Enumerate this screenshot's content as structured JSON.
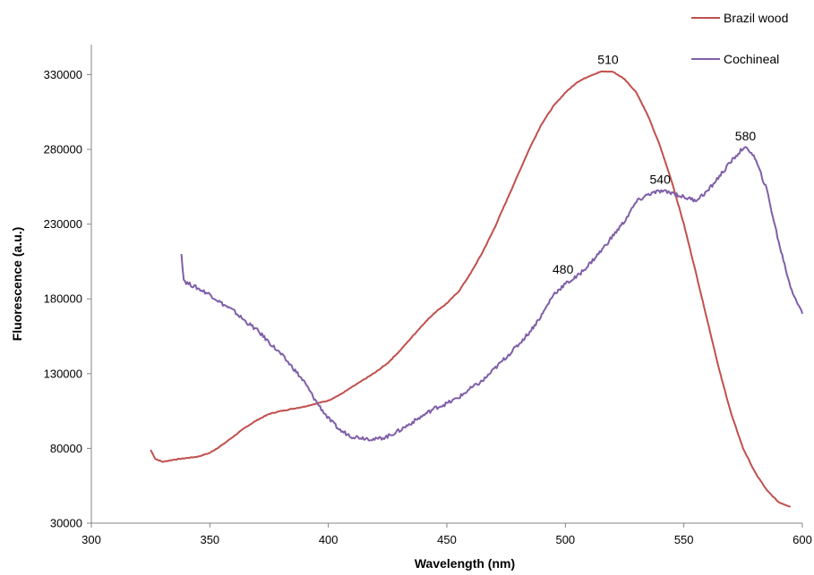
{
  "chart_data": {
    "type": "line",
    "title": "",
    "xlabel": "Wavelength (nm)",
    "ylabel": "Fluorescence (a.u.)",
    "xlim": [
      300,
      600
    ],
    "ylim": [
      30000,
      350000
    ],
    "xticks": [
      300,
      350,
      400,
      450,
      500,
      550,
      600
    ],
    "yticks": [
      30000,
      80000,
      130000,
      180000,
      230000,
      280000,
      330000
    ],
    "xtick_labels": [
      "300",
      "350",
      "400",
      "450",
      "500",
      "550",
      "600"
    ],
    "ytick_labels": [
      "30000",
      "80000",
      "130000",
      "180000",
      "230000",
      "280000",
      "330000"
    ],
    "grid": false,
    "legend_position": "top-right",
    "series": [
      {
        "name": "Brazil wood",
        "color": "#c0504d",
        "x": [
          325,
          327,
          330,
          335,
          340,
          345,
          350,
          355,
          360,
          365,
          370,
          375,
          380,
          385,
          390,
          395,
          400,
          405,
          410,
          415,
          420,
          425,
          430,
          435,
          440,
          445,
          450,
          455,
          460,
          465,
          470,
          475,
          480,
          485,
          490,
          495,
          500,
          505,
          510,
          515,
          520,
          525,
          530,
          535,
          540,
          545,
          550,
          555,
          560,
          565,
          570,
          575,
          580,
          585,
          590,
          595
        ],
        "y": [
          79000,
          73000,
          71000,
          72500,
          73500,
          74500,
          77000,
          82000,
          88000,
          94000,
          99000,
          103000,
          105000,
          106500,
          108000,
          110000,
          112000,
          116000,
          121000,
          126000,
          131000,
          137000,
          145000,
          154000,
          163000,
          171000,
          177000,
          185000,
          197000,
          211000,
          227000,
          245000,
          263000,
          281000,
          297000,
          309000,
          318000,
          325000,
          329000,
          332000,
          332000,
          327000,
          318000,
          302000,
          282000,
          258000,
          230000,
          198000,
          165000,
          132000,
          103000,
          80000,
          64000,
          52000,
          44000,
          41000
        ]
      },
      {
        "name": "Cochineal",
        "color": "#7f5fa8",
        "x": [
          338,
          339,
          340,
          345,
          350,
          355,
          360,
          365,
          370,
          375,
          380,
          385,
          390,
          395,
          400,
          405,
          410,
          415,
          420,
          425,
          430,
          435,
          440,
          445,
          450,
          455,
          460,
          465,
          470,
          475,
          480,
          485,
          490,
          495,
          500,
          505,
          510,
          515,
          520,
          525,
          530,
          535,
          540,
          545,
          550,
          555,
          560,
          565,
          570,
          575,
          578,
          580,
          585,
          590,
          595,
          600
        ],
        "y": [
          210000,
          193000,
          191000,
          187000,
          183000,
          177000,
          172000,
          165000,
          159000,
          151000,
          143000,
          134000,
          124000,
          111000,
          100000,
          92000,
          88000,
          87000,
          86000,
          88000,
          92000,
          97000,
          102000,
          107000,
          110000,
          114000,
          120000,
          125000,
          133000,
          141000,
          149000,
          158000,
          169000,
          183000,
          190000,
          195000,
          203000,
          212000,
          222000,
          232000,
          245000,
          250000,
          252000,
          251000,
          248000,
          246000,
          252000,
          262000,
          272000,
          281000,
          279000,
          274000,
          253000,
          218000,
          188000,
          170000
        ]
      }
    ],
    "annotations": [
      {
        "text": "510",
        "x": 518,
        "y": 337000
      },
      {
        "text": "540",
        "x": 540,
        "y": 257000
      },
      {
        "text": "580",
        "x": 576,
        "y": 286000
      },
      {
        "text": "480",
        "x": 499,
        "y": 197000
      }
    ]
  }
}
